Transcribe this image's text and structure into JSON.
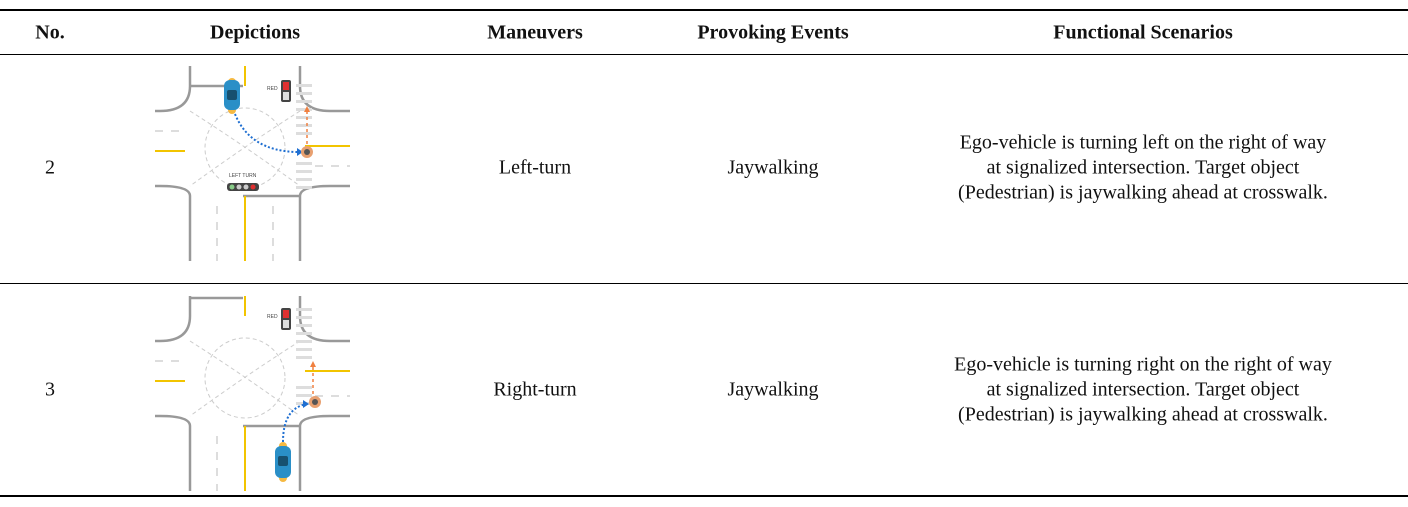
{
  "table": {
    "headers": [
      "No.",
      "Depictions",
      "Maneuvers",
      "Provoking Events",
      "Functional Scenarios"
    ],
    "rows": [
      {
        "no": "2",
        "signal_labels": [
          "RED",
          "LEFT TURN"
        ],
        "maneuver": "Left-turn",
        "event": "Jaywalking",
        "scenario": "Ego-vehicle is turning left on the right of way at signalized intersection. Target object (Pedestrian) is jaywalking ahead at crosswalk."
      },
      {
        "no": "3",
        "signal_labels": [
          "RED"
        ],
        "maneuver": "Right-turn",
        "event": "Jaywalking",
        "scenario": "Ego-vehicle is turning right on the right of way at signalized intersection. Target object (Pedestrian) is jaywalking ahead at crosswalk."
      }
    ]
  }
}
